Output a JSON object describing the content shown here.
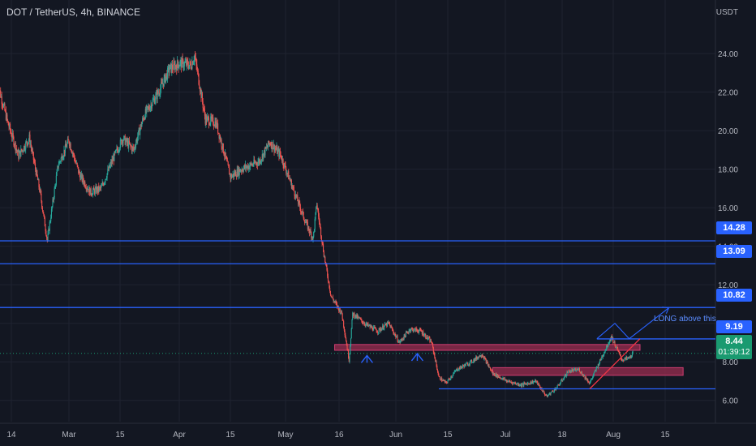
{
  "header": {
    "title": "DOT / TetherUS, 4h, BINANCE"
  },
  "colors": {
    "background": "#131722",
    "grid": "#1f2330",
    "axis_text": "#b2b5be",
    "candle_up": "#26a69a",
    "candle_down": "#ef5350",
    "level_line": "#2962ff",
    "zone_fill": "#8b2a4a",
    "zone_border": "#d13d71",
    "trendline": "#f23645",
    "last_price": "#1a9a70"
  },
  "chart_data": {
    "type": "candlestick",
    "title": "DOT / TetherUS, 4h, BINANCE",
    "y_unit": "USDT",
    "ylim": [
      5.4,
      25.6
    ],
    "y_ticks": [
      6,
      8,
      10,
      12,
      14,
      16,
      18,
      20,
      22,
      24
    ],
    "y_tick_labels": [
      "6.00",
      "8.00",
      "10.00",
      "12.00",
      "14.00",
      "16.00",
      "18.00",
      "20.00",
      "22.00",
      "24.00"
    ],
    "x_tick_labels": [
      "14",
      "Mar",
      "15",
      "Apr",
      "15",
      "May",
      "16",
      "Jun",
      "15",
      "Jul",
      "18",
      "Aug",
      "15"
    ],
    "price_path": [
      [
        "Feb 10",
        22.6
      ],
      [
        "Feb 13",
        20.4
      ],
      [
        "Feb 16",
        18.7
      ],
      [
        "Feb 19",
        19.6
      ],
      [
        "Feb 22",
        16.8
      ],
      [
        "Feb 24",
        14.3
      ],
      [
        "Feb 27",
        18.2
      ],
      [
        "Mar 2",
        19.5
      ],
      [
        "Mar 5",
        17.7
      ],
      [
        "Mar 8",
        16.8
      ],
      [
        "Mar 11",
        17.0
      ],
      [
        "Mar 14",
        18.4
      ],
      [
        "Mar 17",
        19.6
      ],
      [
        "Mar 20",
        19.0
      ],
      [
        "Mar 23",
        20.8
      ],
      [
        "Mar 27",
        22.0
      ],
      [
        "Mar 30",
        23.2
      ],
      [
        "Apr 2",
        23.5
      ],
      [
        "Apr 5",
        23.4
      ],
      [
        "Apr 6",
        23.9
      ],
      [
        "Apr 9",
        20.6
      ],
      [
        "Apr 12",
        20.4
      ],
      [
        "Apr 16",
        17.6
      ],
      [
        "Apr 19",
        18.0
      ],
      [
        "Apr 24",
        18.4
      ],
      [
        "Apr 27",
        19.4
      ],
      [
        "Apr 30",
        18.7
      ],
      [
        "May 4",
        16.7
      ],
      [
        "May 7",
        15.2
      ],
      [
        "May 9",
        14.4
      ],
      [
        "May 10",
        16.2
      ],
      [
        "May 12",
        13.6
      ],
      [
        "May 14",
        11.4
      ],
      [
        "May 17",
        10.5
      ],
      [
        "May 19",
        8.1
      ],
      [
        "May 20",
        10.5
      ],
      [
        "May 24",
        9.9
      ],
      [
        "May 27",
        9.6
      ],
      [
        "May 30",
        10.0
      ],
      [
        "Jun 2",
        9.0
      ],
      [
        "Jun 5",
        9.7
      ],
      [
        "Jun 8",
        9.6
      ],
      [
        "Jun 11",
        9.0
      ],
      [
        "Jun 13",
        7.2
      ],
      [
        "Jun 15",
        6.9
      ],
      [
        "Jun 18",
        7.6
      ],
      [
        "Jun 22",
        8.0
      ],
      [
        "Jun 25",
        8.4
      ],
      [
        "Jun 28",
        7.4
      ],
      [
        "Jul 2",
        7.0
      ],
      [
        "Jul 6",
        6.8
      ],
      [
        "Jul 10",
        7.0
      ],
      [
        "Jul 13",
        6.2
      ],
      [
        "Jul 16",
        6.7
      ],
      [
        "Jul 19",
        7.5
      ],
      [
        "Jul 22",
        7.6
      ],
      [
        "Jul 25",
        6.9
      ],
      [
        "Jul 28",
        8.1
      ],
      [
        "Jul 31",
        9.3
      ],
      [
        "Aug 3",
        8.1
      ],
      [
        "Aug 5",
        8.2
      ],
      [
        "Aug 6",
        8.44
      ]
    ],
    "horizontal_levels": [
      {
        "value": 14.28,
        "label": "14.28"
      },
      {
        "value": 13.09,
        "label": "13.09"
      },
      {
        "value": 10.82,
        "label": "10.82"
      },
      {
        "value": 9.19,
        "label": "9.19"
      },
      {
        "value": 6.6,
        "label": ""
      }
    ],
    "zones": [
      {
        "from": "May 15",
        "to": "Aug 8",
        "low": 8.6,
        "high": 8.9
      },
      {
        "from": "Jun 28",
        "to": "Aug 20",
        "low": 7.3,
        "high": 7.7
      }
    ],
    "trendlines": [
      {
        "from": [
          "Jul 25",
          6.6
        ],
        "to": [
          "Aug 8",
          9.2
        ]
      }
    ],
    "projection": [
      [
        "Jul 27",
        9.2
      ],
      [
        "Aug 1",
        10.0
      ],
      [
        "Aug 5",
        9.2
      ],
      [
        "Aug 16",
        10.8
      ]
    ],
    "arrows_up": [
      [
        "May 24",
        8.5
      ],
      [
        "Jun 7",
        8.6
      ]
    ],
    "annotations": [
      {
        "text": "LONG above this"
      }
    ],
    "last_price": {
      "value": "8.44",
      "countdown": "01:39:12"
    }
  }
}
